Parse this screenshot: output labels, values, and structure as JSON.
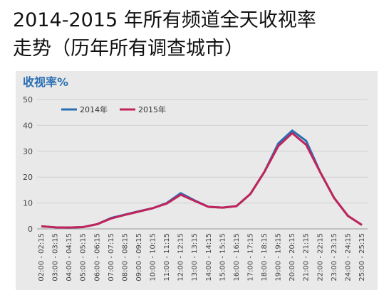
{
  "chart_data": {
    "type": "line",
    "title": "2014-2015 年所有频道全天收视率",
    "subtitle": "走势（历年所有调查城市）",
    "y_label": "收视率%",
    "categories": [
      "02:00 - 02:15",
      "03:00 - 03:15",
      "04:00 - 04:15",
      "05:00 - 05:15",
      "06:00 - 06:15",
      "07:00 - 07:15",
      "08:00 - 08:15",
      "09:00 - 09:15",
      "10:00 - 10:15",
      "11:00 - 11:15",
      "12:00 - 12:15",
      "13:00 - 13:15",
      "14:00 - 14:15",
      "15:00 - 15:15",
      "16:00 - 16:15",
      "17:00 - 17:15",
      "18:00 - 18:15",
      "19:00 - 19:15",
      "20:00 - 20:15",
      "21:00 - 21:15",
      "22:00 - 22:15",
      "23:00 - 23:15",
      "24:00 - 24:15",
      "25:00 - 25:15"
    ],
    "series": [
      {
        "name": "2014年",
        "color": "#2a6fb3",
        "values": [
          1.0,
          0.6,
          0.5,
          0.7,
          1.8,
          4.2,
          5.5,
          6.8,
          8.0,
          10.0,
          13.8,
          11.0,
          8.5,
          8.2,
          8.8,
          13.5,
          22,
          33,
          38,
          34,
          22,
          12,
          5,
          1.5
        ]
      },
      {
        "name": "2015年",
        "color": "#c0245a",
        "values": [
          1.0,
          0.6,
          0.5,
          0.7,
          1.8,
          4.0,
          5.4,
          6.7,
          8.0,
          9.8,
          13.2,
          10.8,
          8.5,
          8.2,
          8.8,
          13.5,
          22,
          32,
          37,
          32.5,
          22,
          12,
          5,
          1.5
        ]
      }
    ],
    "ylim": [
      0,
      50
    ],
    "yticks": [
      0,
      10,
      20,
      30,
      40,
      50
    ],
    "grid": true,
    "legend": "upper left"
  }
}
